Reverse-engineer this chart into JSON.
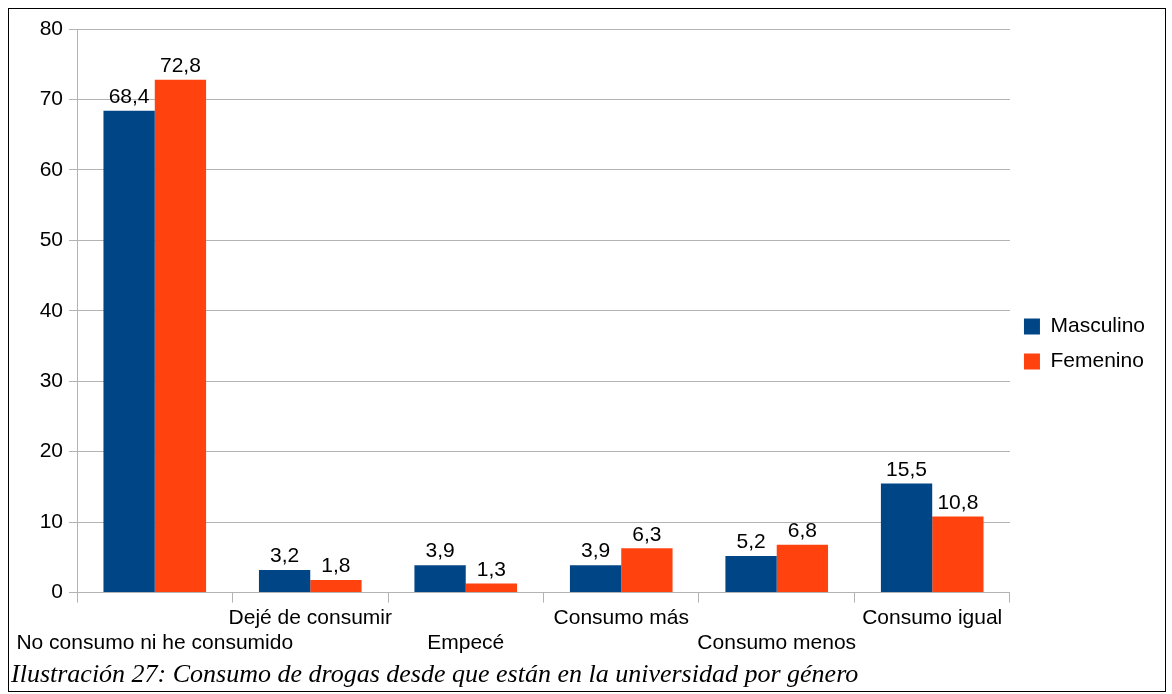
{
  "chart_data": {
    "type": "bar",
    "categories": [
      "No consumo ni he consumido",
      "Dejé de consumir",
      "Empecé",
      "Consumo más",
      "Consumo menos",
      "Consumo igual"
    ],
    "series": [
      {
        "name": "Masculino",
        "color": "#004586",
        "values": [
          68.4,
          3.2,
          3.9,
          3.9,
          5.2,
          15.5
        ],
        "value_labels": [
          "68,4",
          "3,2",
          "3,9",
          "3,9",
          "5,2",
          "15,5"
        ]
      },
      {
        "name": "Femenino",
        "color": "#ff420e",
        "values": [
          72.8,
          1.8,
          1.3,
          6.3,
          6.8,
          10.8
        ],
        "value_labels": [
          "72,8",
          "1,8",
          "1,3",
          "6,3",
          "6,8",
          "10,8"
        ]
      }
    ],
    "ylim": [
      0,
      80
    ],
    "yticks": [
      0,
      10,
      20,
      30,
      40,
      50,
      60,
      70,
      80
    ],
    "grid": "y",
    "legend": "right",
    "annotations": [
      "Ilustración 27: Consumo de drogas desde que están en la universidad por género"
    ]
  }
}
